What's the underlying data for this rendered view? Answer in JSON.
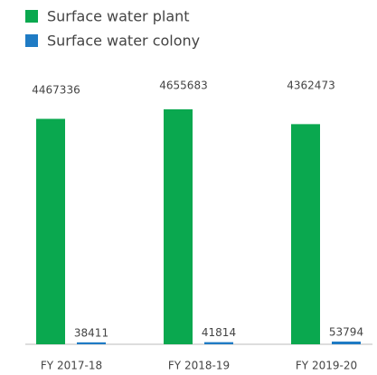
{
  "chart_data": {
    "type": "bar",
    "categories": [
      "FY 2017-18",
      "FY 2018-19",
      "FY 2019-20"
    ],
    "series": [
      {
        "name": "Surface water plant",
        "color": "#0aa84f",
        "values": [
          4467336,
          4655683,
          4362473
        ]
      },
      {
        "name": "Surface water colony",
        "color": "#1f7bc4",
        "values": [
          38411,
          41814,
          53794
        ]
      }
    ]
  }
}
